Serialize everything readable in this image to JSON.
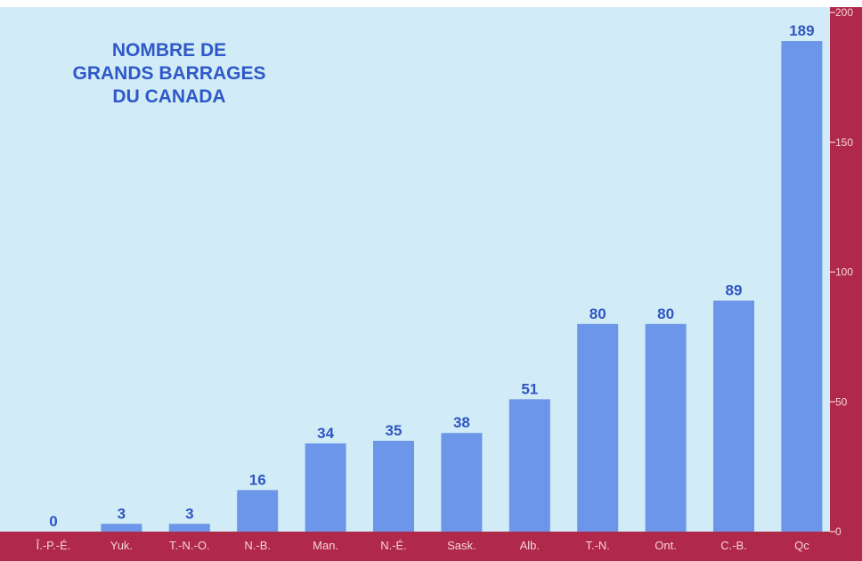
{
  "chart_data": {
    "type": "bar",
    "title": [
      "NOMBRE DE",
      "GRANDS BARRAGES",
      "DU CANADA"
    ],
    "xlabel": "",
    "ylabel": "",
    "categories": [
      "Î.-P.-É.",
      "Yuk.",
      "T.-N.-O.",
      "N.-B.",
      "Man.",
      "N.-É.",
      "Sask.",
      "Alb.",
      "T.-N.",
      "Ont.",
      "C.-B.",
      "Qc"
    ],
    "values": [
      0,
      3,
      3,
      16,
      34,
      35,
      38,
      51,
      80,
      80,
      89,
      189
    ],
    "data_labels": [
      "0",
      "3",
      "3",
      "16",
      "34",
      "35",
      "38",
      "51",
      "80",
      "80",
      "89",
      "189"
    ],
    "ylim": [
      0,
      200
    ],
    "yticks": [
      0,
      50,
      100,
      150,
      200
    ],
    "ytick_labels": [
      "0",
      "50",
      "100",
      "150",
      "200"
    ],
    "y_axis_side": "right",
    "grid": false,
    "legend": "none",
    "colors": {
      "plot_background": "#d2ecf7",
      "bar": "#6b96ea",
      "bar_label": "#2f55c2",
      "title": "#2f59c8",
      "frame": "#b0284a",
      "frame_text": "#f6d3dd"
    }
  }
}
